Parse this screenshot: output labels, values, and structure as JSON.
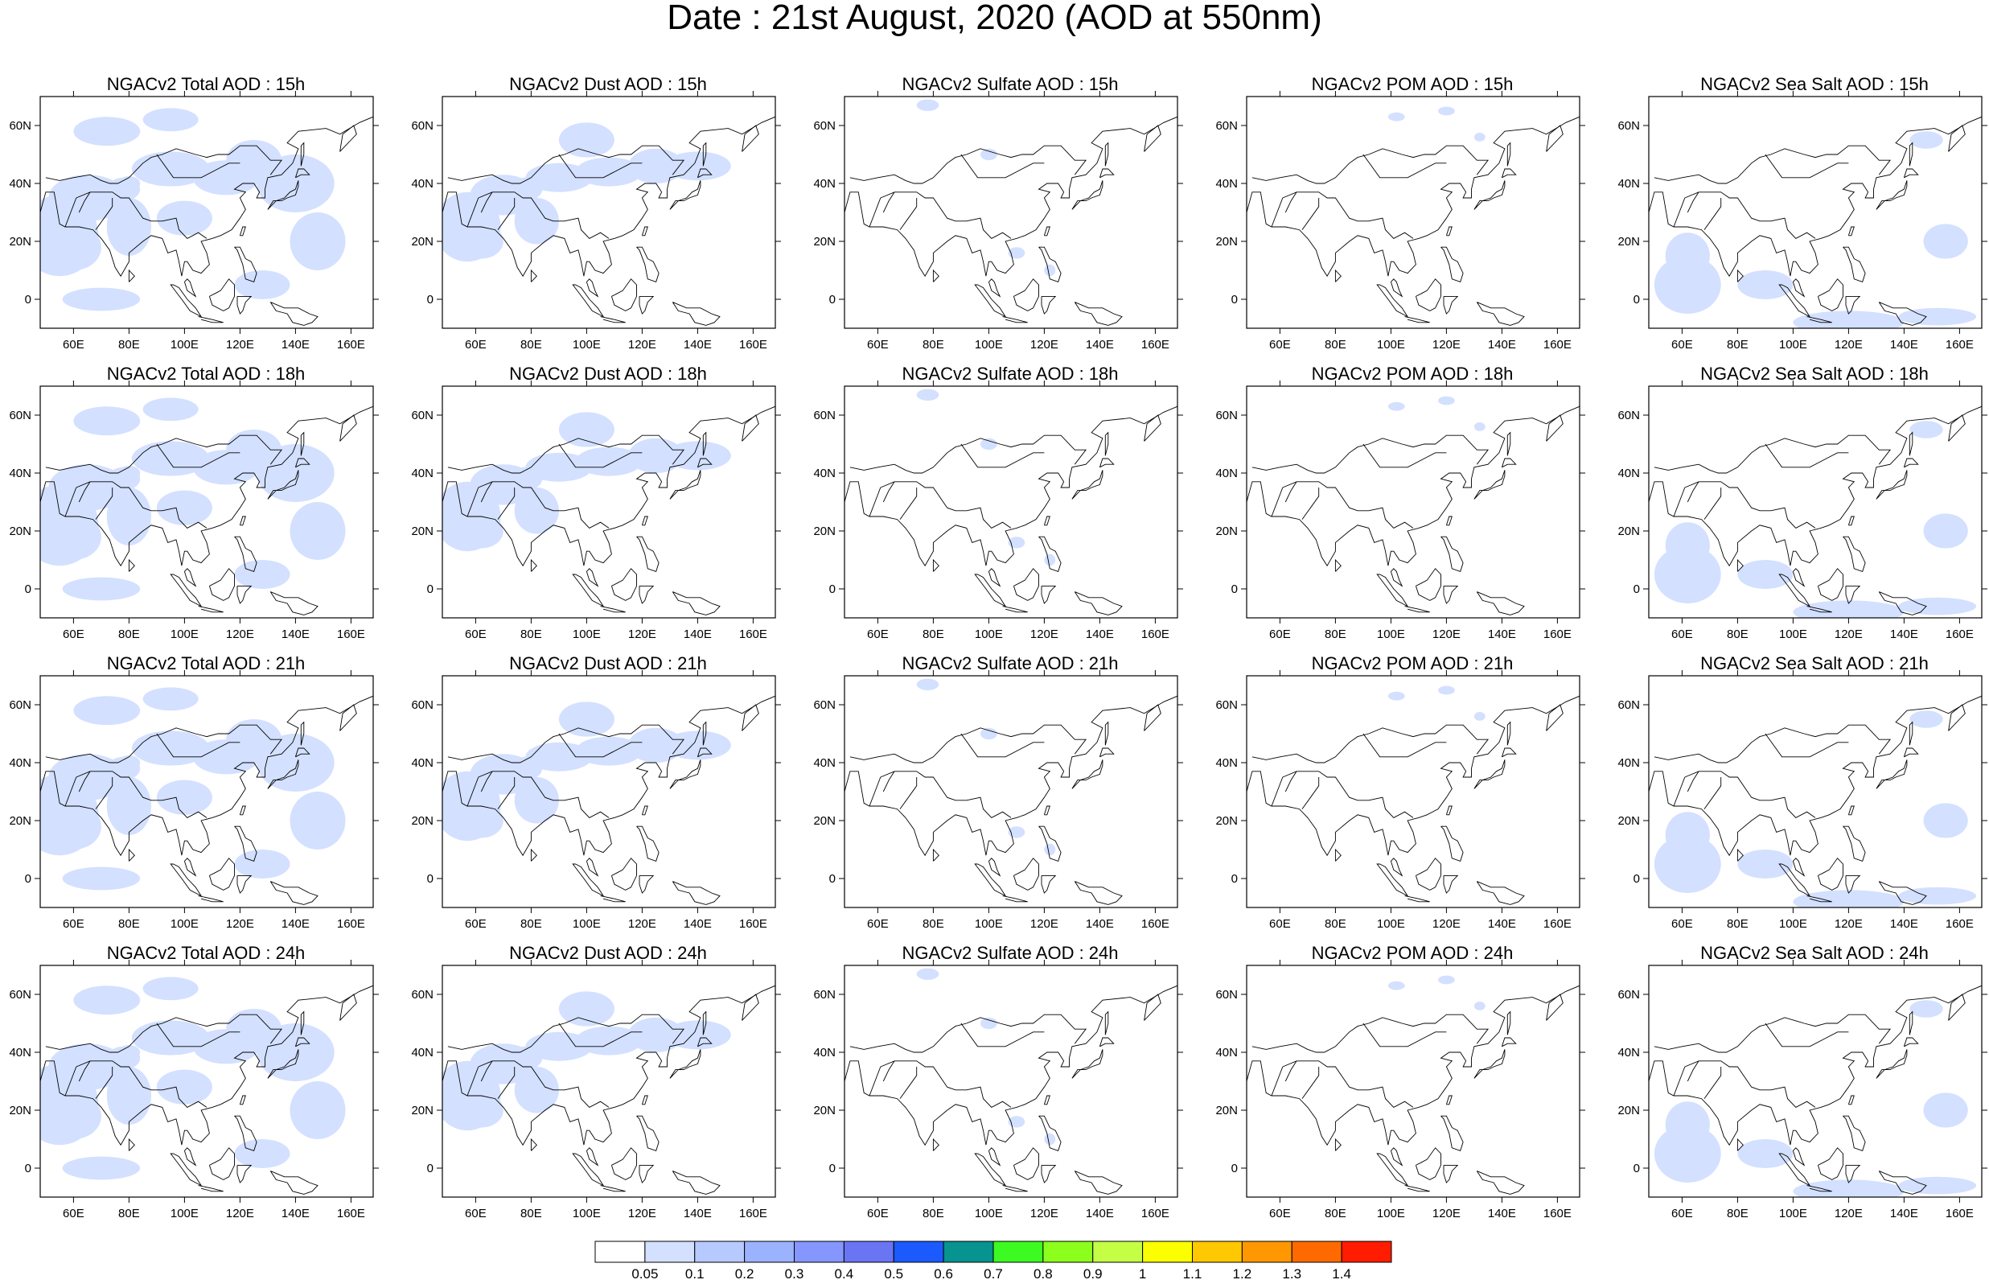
{
  "title": "Date : 21st August, 2020 (AOD at 550nm)",
  "panels": [
    {
      "title": "NGACv2 Total AOD : 15h",
      "species": "total",
      "hour": "15h"
    },
    {
      "title": "NGACv2 Dust AOD : 15h",
      "species": "dust",
      "hour": "15h"
    },
    {
      "title": "NGACv2 Sulfate AOD : 15h",
      "species": "sulfate",
      "hour": "15h"
    },
    {
      "title": "NGACv2 POM AOD : 15h",
      "species": "pom",
      "hour": "15h"
    },
    {
      "title": "NGACv2 Sea Salt AOD : 15h",
      "species": "seasalt",
      "hour": "15h"
    },
    {
      "title": "NGACv2 Total AOD : 18h",
      "species": "total",
      "hour": "18h"
    },
    {
      "title": "NGACv2 Dust AOD : 18h",
      "species": "dust",
      "hour": "18h"
    },
    {
      "title": "NGACv2 Sulfate AOD : 18h",
      "species": "sulfate",
      "hour": "18h"
    },
    {
      "title": "NGACv2 POM AOD : 18h",
      "species": "pom",
      "hour": "18h"
    },
    {
      "title": "NGACv2 Sea Salt AOD : 18h",
      "species": "seasalt",
      "hour": "18h"
    },
    {
      "title": "NGACv2 Total AOD : 21h",
      "species": "total",
      "hour": "21h"
    },
    {
      "title": "NGACv2 Dust AOD : 21h",
      "species": "dust",
      "hour": "21h"
    },
    {
      "title": "NGACv2 Sulfate AOD : 21h",
      "species": "sulfate",
      "hour": "21h"
    },
    {
      "title": "NGACv2 POM AOD : 21h",
      "species": "pom",
      "hour": "21h"
    },
    {
      "title": "NGACv2 Sea Salt AOD : 21h",
      "species": "seasalt",
      "hour": "21h"
    },
    {
      "title": "NGACv2 Total AOD : 24h",
      "species": "total",
      "hour": "24h"
    },
    {
      "title": "NGACv2 Dust AOD : 24h",
      "species": "dust",
      "hour": "24h"
    },
    {
      "title": "NGACv2 Sulfate AOD : 24h",
      "species": "sulfate",
      "hour": "24h"
    },
    {
      "title": "NGACv2 POM AOD : 24h",
      "species": "pom",
      "hour": "24h"
    },
    {
      "title": "NGACv2 Sea Salt  AOD : 24h",
      "species": "seasalt",
      "hour": "24h"
    }
  ],
  "map": {
    "lon_range": [
      48,
      168
    ],
    "lat_range": [
      -10,
      70
    ],
    "lon_ticks": [
      "60E",
      "80E",
      "100E",
      "120E",
      "140E",
      "160E"
    ],
    "lon_tick_values": [
      60,
      80,
      100,
      120,
      140,
      160
    ],
    "lat_ticks": [
      "0",
      "20N",
      "40N",
      "60N"
    ],
    "lat_tick_values": [
      0,
      20,
      40,
      60
    ]
  },
  "colorbar": {
    "labels": [
      "0.05",
      "0.1",
      "0.2",
      "0.3",
      "0.4",
      "0.5",
      "0.6",
      "0.7",
      "0.8",
      "0.9",
      "1",
      "1.1",
      "1.2",
      "1.3",
      "1.4"
    ],
    "colors": [
      "#ffffff",
      "#d3e0ff",
      "#b7caff",
      "#9bb2ff",
      "#8596ff",
      "#6a75f4",
      "#1a5aff",
      "#07938f",
      "#3cfa22",
      "#8cff1c",
      "#c4ff46",
      "#fbff00",
      "#ffc800",
      "#ff9800",
      "#ff6a00",
      "#ff1c00"
    ]
  }
}
